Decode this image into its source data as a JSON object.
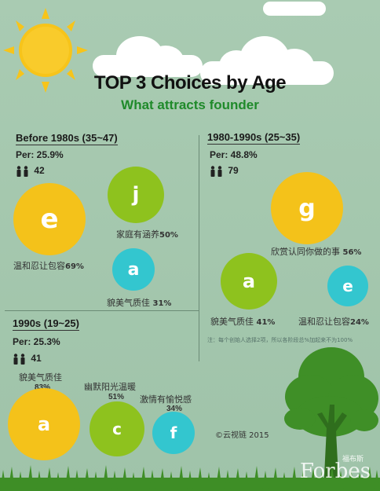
{
  "header": {
    "title": "TOP 3 Choices by Age",
    "subtitle": "What attracts founder"
  },
  "colors": {
    "background": "#a9cbb2",
    "yellow": "#f4c21a",
    "green": "#8ec21e",
    "cyan": "#33c6cf",
    "subtitle": "#1f8a2a",
    "sun": "#f7c41a"
  },
  "icons": [
    "sun-icon",
    "cloud-icon",
    "people-icon",
    "tree-icon",
    "grass-icon"
  ],
  "sections": {
    "before1980": {
      "title": "Before 1980s (35~47)",
      "per": "Per: 25.9%",
      "count": "42",
      "items": [
        {
          "letter": "e",
          "label": "温和忍让包容",
          "pct": "69%"
        },
        {
          "letter": "j",
          "label": "家庭有涵养",
          "pct": "50%"
        },
        {
          "letter": "a",
          "label": "貌美气质佳",
          "pct": "31%"
        }
      ]
    },
    "s1980_1990": {
      "title": "1980-1990s (25~35)",
      "per": "Per: 48.8%",
      "count": "79",
      "items": [
        {
          "letter": "g",
          "label": "欣赏认同你做的事",
          "pct": "56%"
        },
        {
          "letter": "a",
          "label": "貌美气质佳",
          "pct": "41%"
        },
        {
          "letter": "e",
          "label": "温和忍让包容",
          "pct": "24%"
        }
      ]
    },
    "s1990": {
      "title": "1990s (19~25)",
      "per": "Per: 25.3%",
      "count": "41",
      "items": [
        {
          "letter": "a",
          "label": "貌美气质佳",
          "pct": "83%"
        },
        {
          "letter": "c",
          "label": "幽默阳光温暖",
          "pct": "51%"
        },
        {
          "letter": "f",
          "label": "激情有愉悦感",
          "pct": "34%"
        }
      ]
    }
  },
  "note": "注：每个创始人选择2项，所以各阶段总%加起来不为100%",
  "copyright": "©云视链  2015",
  "watermark": {
    "cn": "福布斯",
    "en": "Forbes"
  }
}
